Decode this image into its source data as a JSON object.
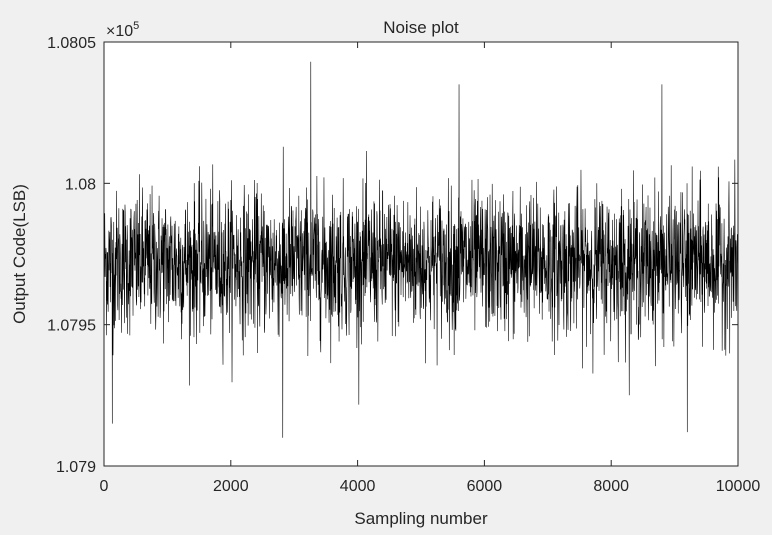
{
  "chart_data": {
    "type": "line",
    "title": "Noise plot",
    "xlabel": "Sampling number",
    "ylabel": "Output Code(LSB)",
    "y_multiplier_label": "×10",
    "y_multiplier_exponent": "5",
    "xlim": [
      0,
      10000
    ],
    "ylim": [
      107900,
      108050
    ],
    "x_ticks": [
      0,
      2000,
      4000,
      6000,
      8000,
      10000
    ],
    "x_tick_labels": [
      "0",
      "2000",
      "4000",
      "6000",
      "8000",
      "10000"
    ],
    "y_ticks": [
      107900,
      107950,
      108000,
      108050
    ],
    "y_tick_labels": [
      "1.079",
      "1.0795",
      "1.08",
      "1.0805"
    ],
    "grid": false,
    "series": [
      {
        "color": "#000000",
        "x_start": 0,
        "x_end": 10000,
        "mean": 107972,
        "peak_to_peak_band": [
          107945,
          108010
        ],
        "notable_extremes": [
          {
            "x": 3260,
            "y": 108043
          },
          {
            "x": 2820,
            "y": 107910
          },
          {
            "x": 5600,
            "y": 108035
          },
          {
            "x": 8800,
            "y": 108035
          },
          {
            "x": 9200,
            "y": 107912
          },
          {
            "x": 130,
            "y": 107915
          }
        ]
      }
    ]
  },
  "colors": {
    "background": "#f0f0f0",
    "plot_area": "#ffffff",
    "axes": "#262626",
    "line": "#000000"
  }
}
